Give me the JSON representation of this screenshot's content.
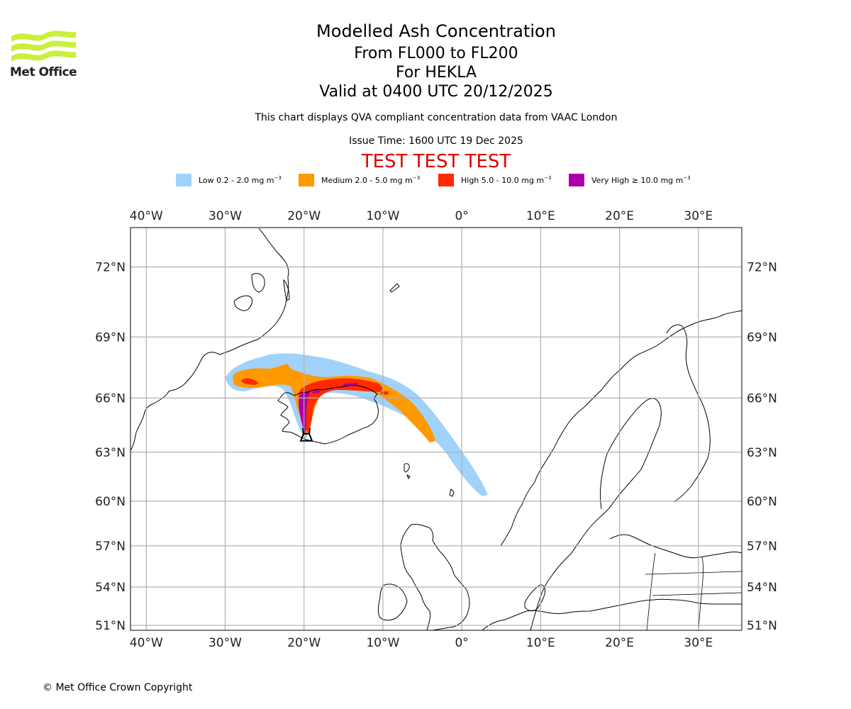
{
  "header": {
    "title": "Modelled Ash Concentration",
    "level_range": "From FL000 to FL200",
    "volcano": "For HEKLA",
    "valid_time": "Valid at 0400 UTC 20/12/2025",
    "compliance_note": "This chart displays QVA compliant concentration data from VAAC London",
    "issue_time": "Issue Time: 1600 UTC 19 Dec 2025",
    "test_banner": "TEST TEST TEST"
  },
  "logo": {
    "text": "Met Office",
    "color": "#c8f03c"
  },
  "legend": [
    {
      "label": "Low 0.2 - 2.0 mg m",
      "exponent": "−3",
      "color": "#a0d2fa"
    },
    {
      "label": "Medium 2.0 - 5.0 mg m",
      "exponent": "−3",
      "color": "#ff9900"
    },
    {
      "label": "High 5.0 - 10.0 mg m",
      "exponent": "−3",
      "color": "#ff2a00"
    },
    {
      "label": "Very High ≥ 10.0 mg m",
      "exponent": "−3",
      "color": "#aa00aa"
    }
  ],
  "map": {
    "lon_range": [
      -42,
      35.5
    ],
    "lat_range": [
      50.6,
      73.5
    ],
    "lon_ticks": [
      {
        "value": -40,
        "label": "40°W"
      },
      {
        "value": -30,
        "label": "30°W"
      },
      {
        "value": -20,
        "label": "20°W"
      },
      {
        "value": -10,
        "label": "10°W"
      },
      {
        "value": 0,
        "label": "0°"
      },
      {
        "value": 10,
        "label": "10°E"
      },
      {
        "value": 20,
        "label": "20°E"
      },
      {
        "value": 30,
        "label": "30°E"
      }
    ],
    "lat_ticks": [
      {
        "value": 72,
        "label": "72°N"
      },
      {
        "value": 69,
        "label": "69°N"
      },
      {
        "value": 66,
        "label": "66°N"
      },
      {
        "value": 63,
        "label": "63°N"
      },
      {
        "value": 60,
        "label": "60°N"
      },
      {
        "value": 57,
        "label": "57°N"
      },
      {
        "value": 54,
        "label": "54°N"
      },
      {
        "value": 51,
        "label": "51°N"
      }
    ],
    "grid_color": "#b0b0b0",
    "volcano_symbol": {
      "name": "HEKLA",
      "lon": -19.7,
      "lat": 63.98
    }
  },
  "footer": {
    "copyright": "© Met Office Crown Copyright"
  }
}
